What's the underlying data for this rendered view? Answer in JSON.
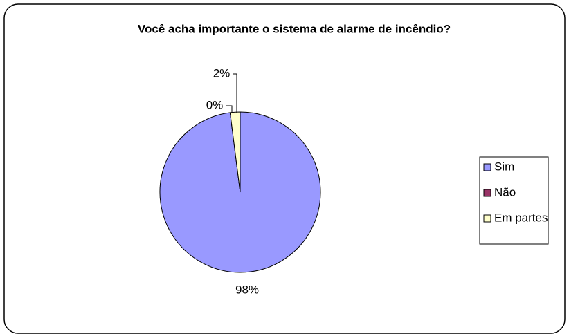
{
  "chart_data": {
    "type": "pie",
    "title": "Você acha importante o sistema de alarme de incêndio?",
    "categories": [
      "Sim",
      "Não",
      "Em partes"
    ],
    "values": [
      98,
      0,
      2
    ],
    "value_labels": [
      "98%",
      "0%",
      "2%"
    ],
    "colors": [
      "#9999ff",
      "#993366",
      "#ffffcc"
    ],
    "legend": "right"
  }
}
